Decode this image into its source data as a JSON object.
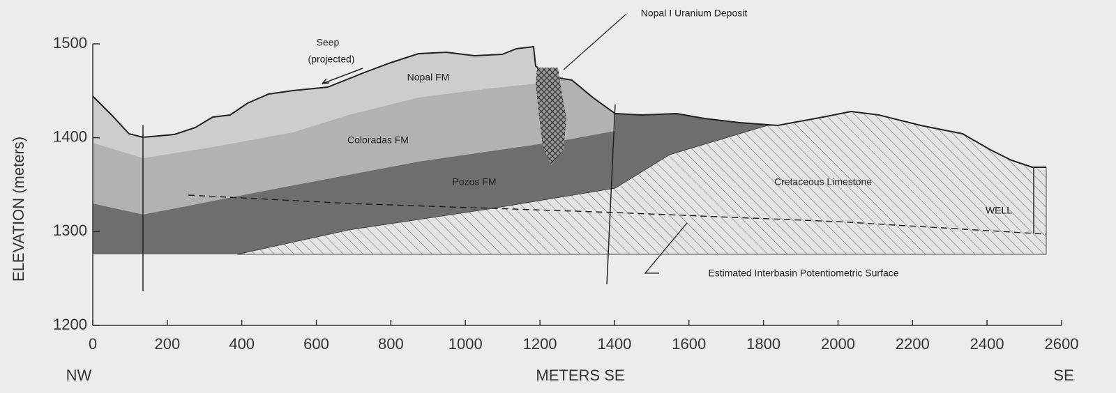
{
  "axes": {
    "xlim": [
      0,
      2600
    ],
    "xticks": [
      0,
      200,
      400,
      600,
      800,
      1000,
      1200,
      1400,
      1600,
      1800,
      2000,
      2200,
      2400,
      2600
    ],
    "ylim": [
      1200,
      1500
    ],
    "yticks": [
      1200,
      1300,
      1400,
      1500
    ],
    "y_label": "ELEVATION (meters)",
    "x_label": "METERS SE",
    "x_left": "NW",
    "x_right": "SE"
  },
  "labels": {
    "seep": "Seep",
    "seep_note": "(projected)",
    "nopal": "Nopal FM",
    "coloradas": "Coloradas FM",
    "pozos": "Pozos FM",
    "limestone": "Cretaceous Limestone",
    "well": "WELL",
    "deposit": "Nopal I Uranium Deposit",
    "surface": "Estimated Interbasin Potentiometric Surface"
  }
}
